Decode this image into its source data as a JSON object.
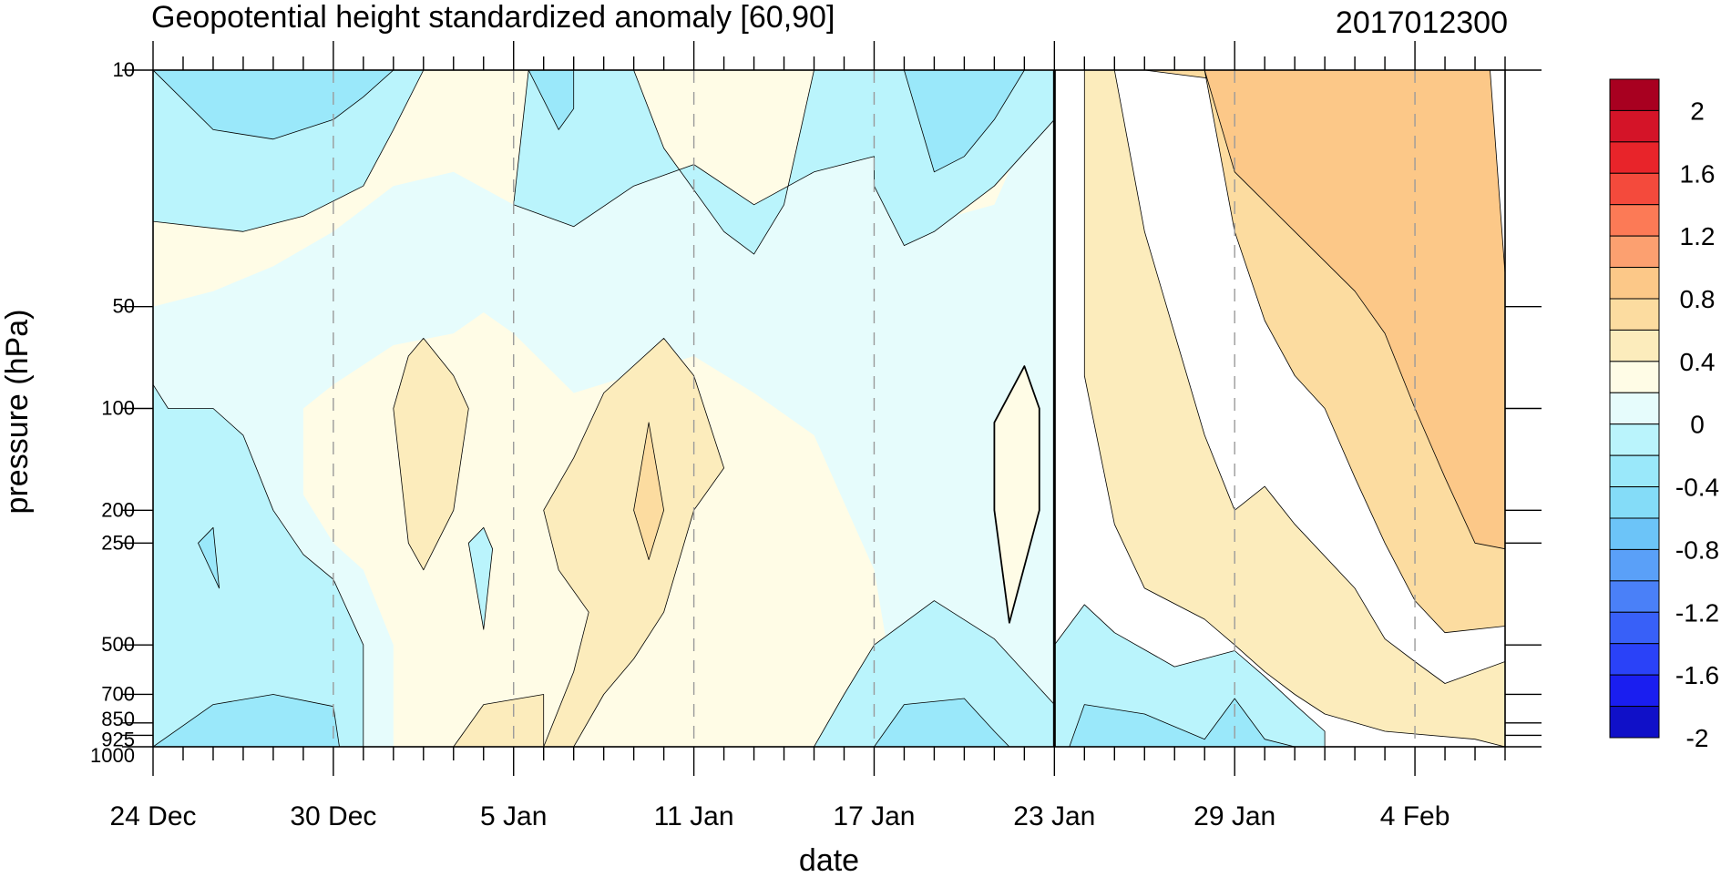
{
  "chart_data": {
    "type": "heatmap",
    "subtype": "filled-contour",
    "title": "Geopotential height standardized anomaly [60,90]",
    "timestamp": "2017012300",
    "xlabel": "date",
    "ylabel": "pressure (hPa)",
    "x_axis": {
      "unit": "days since 24 Dec",
      "range": [
        0,
        45
      ],
      "ticks": [
        {
          "value": 0,
          "label": "24 Dec"
        },
        {
          "value": 6,
          "label": "30 Dec"
        },
        {
          "value": 12,
          "label": "5 Jan"
        },
        {
          "value": 18,
          "label": "11 Jan"
        },
        {
          "value": 24,
          "label": "17 Jan"
        },
        {
          "value": 30,
          "label": "23 Jan"
        },
        {
          "value": 36,
          "label": "29 Jan"
        },
        {
          "value": 42,
          "label": "4 Feb"
        }
      ],
      "forecast_start": 30
    },
    "y_axis": {
      "scale": "log",
      "inverted": true,
      "range": [
        1000,
        10
      ],
      "ticks": [
        {
          "value": 10,
          "label": "10"
        },
        {
          "value": 50,
          "label": "50"
        },
        {
          "value": 100,
          "label": "100"
        },
        {
          "value": 200,
          "label": "200"
        },
        {
          "value": 250,
          "label": "250"
        },
        {
          "value": 500,
          "label": "500"
        },
        {
          "value": 700,
          "label": "700"
        },
        {
          "value": 850,
          "label": "850"
        },
        {
          "value": 925,
          "label": "925"
        },
        {
          "value": 1000,
          "label": "1000"
        }
      ]
    },
    "colorbar": {
      "levels": [
        -2,
        -1.8,
        -1.6,
        -1.4,
        -1.2,
        -1.0,
        -0.8,
        -0.6,
        -0.4,
        -0.2,
        0,
        0.2,
        0.4,
        0.6,
        0.8,
        1.0,
        1.2,
        1.4,
        1.6,
        1.8,
        2
      ],
      "labels": [
        "2",
        "1.6",
        "1.2",
        "0.8",
        "0.4",
        "0",
        "-0.4",
        "-0.8",
        "-1.2",
        "-1.6",
        "-2"
      ],
      "colors": [
        "#1010c8",
        "#1a1ef0",
        "#2a42f8",
        "#3860f8",
        "#4a80f8",
        "#5aa0f8",
        "#6cc4f8",
        "#84dcf8",
        "#9ae8fa",
        "#baf4fc",
        "#e6fcfc",
        "#fffce6",
        "#fcecbc",
        "#fcdca0",
        "#fcc888",
        "#fca070",
        "#fc7a56",
        "#f44a3c",
        "#e8242a",
        "#d41428",
        "#a80020"
      ]
    },
    "regions": [
      {
        "level": "0 to 0.2",
        "color": "#fffce6",
        "points": [
          [
            0,
            50
          ],
          [
            0,
            10
          ],
          [
            30,
            10
          ],
          [
            30,
            1000
          ],
          [
            0,
            1000
          ]
        ]
      },
      {
        "level": "-0.2 to 0",
        "color": "#e6fcfc",
        "points": [
          [
            0,
            50
          ],
          [
            2,
            45
          ],
          [
            4,
            38
          ],
          [
            6,
            30
          ],
          [
            8,
            22
          ],
          [
            10,
            20
          ],
          [
            12,
            25
          ],
          [
            14,
            29
          ],
          [
            16,
            22
          ],
          [
            18,
            19
          ],
          [
            20,
            25
          ],
          [
            22,
            20
          ],
          [
            24,
            18
          ],
          [
            26,
            28
          ],
          [
            28,
            25
          ],
          [
            30,
            10
          ],
          [
            30,
            1000
          ],
          [
            25,
            1000
          ],
          [
            24,
            300
          ],
          [
            22,
            120
          ],
          [
            20,
            90
          ],
          [
            18,
            70
          ],
          [
            14,
            90
          ],
          [
            12,
            60
          ],
          [
            11,
            52
          ],
          [
            10,
            60
          ],
          [
            8,
            65
          ],
          [
            6,
            85
          ],
          [
            5,
            100
          ],
          [
            5,
            180
          ],
          [
            6,
            250
          ],
          [
            7,
            300
          ],
          [
            8,
            500
          ],
          [
            8,
            1000
          ],
          [
            0,
            1000
          ]
        ]
      },
      {
        "level": "-0.4 to -0.2",
        "color": "#baf4fc",
        "points": [
          [
            0,
            10
          ],
          [
            9,
            10
          ],
          [
            8,
            15
          ],
          [
            7,
            22
          ],
          [
            5,
            27
          ],
          [
            3,
            30
          ],
          [
            0,
            28
          ]
        ]
      },
      {
        "level": "-0.4 to -0.2",
        "color": "#baf4fc",
        "points": [
          [
            12.5,
            10
          ],
          [
            16,
            10
          ],
          [
            17,
            17
          ],
          [
            19,
            30
          ],
          [
            20,
            35
          ],
          [
            21,
            25
          ],
          [
            22,
            10
          ],
          [
            30,
            10
          ],
          [
            30,
            14
          ],
          [
            28,
            22
          ],
          [
            26,
            30
          ],
          [
            25,
            33
          ],
          [
            24,
            22
          ],
          [
            24,
            18
          ],
          [
            22,
            20
          ],
          [
            20,
            25
          ],
          [
            18,
            19
          ],
          [
            16,
            22
          ],
          [
            14,
            29
          ],
          [
            12,
            25
          ]
        ]
      },
      {
        "level": "-0.4 to -0.2",
        "color": "#baf4fc",
        "points": [
          [
            0,
            85
          ],
          [
            0.5,
            100
          ],
          [
            2,
            100
          ],
          [
            3,
            120
          ],
          [
            4,
            200
          ],
          [
            5,
            270
          ],
          [
            6,
            320
          ],
          [
            7,
            500
          ],
          [
            7,
            1000
          ],
          [
            0,
            1000
          ]
        ]
      },
      {
        "level": "-0.4 to -0.2",
        "color": "#baf4fc",
        "points": [
          [
            22,
            1000
          ],
          [
            23,
            700
          ],
          [
            24,
            500
          ],
          [
            26,
            370
          ],
          [
            28,
            480
          ],
          [
            30,
            750
          ],
          [
            31,
            1000
          ]
        ]
      },
      {
        "level": "-0.4 to -0.2",
        "color": "#baf4fc",
        "points": [
          [
            30,
            1000
          ],
          [
            30,
            500
          ],
          [
            31,
            380
          ],
          [
            32,
            460
          ],
          [
            34,
            580
          ],
          [
            36,
            520
          ],
          [
            37,
            620
          ],
          [
            38,
            750
          ],
          [
            39,
            900
          ],
          [
            39,
            1000
          ]
        ]
      },
      {
        "level": "-0.6 to -0.4",
        "color": "#9ae8fa",
        "points": [
          [
            0,
            10
          ],
          [
            2,
            15
          ],
          [
            4,
            16
          ],
          [
            6,
            14
          ],
          [
            7,
            12
          ],
          [
            8,
            10
          ]
        ]
      },
      {
        "level": "-0.6 to -0.4",
        "color": "#9ae8fa",
        "points": [
          [
            12.5,
            10
          ],
          [
            14,
            10
          ],
          [
            14,
            13
          ],
          [
            13.5,
            15
          ]
        ]
      },
      {
        "level": "-0.6 to -0.4",
        "color": "#9ae8fa",
        "points": [
          [
            25,
            10
          ],
          [
            29,
            10
          ],
          [
            28,
            14
          ],
          [
            27,
            18
          ],
          [
            26,
            20
          ]
        ]
      },
      {
        "level": "-0.6 to -0.4",
        "color": "#9ae8fa",
        "points": [
          [
            0,
            1000
          ],
          [
            2,
            750
          ],
          [
            4,
            700
          ],
          [
            6,
            760
          ],
          [
            6.2,
            1000
          ]
        ]
      },
      {
        "level": "-0.6 to -0.4",
        "color": "#9ae8fa",
        "points": [
          [
            24,
            1000
          ],
          [
            25,
            750
          ],
          [
            27,
            720
          ],
          [
            28,
            900
          ],
          [
            28.5,
            1000
          ]
        ]
      },
      {
        "level": "-0.6 to -0.4",
        "color": "#9ae8fa",
        "points": [
          [
            30.5,
            1000
          ],
          [
            31,
            750
          ],
          [
            33,
            800
          ],
          [
            35,
            950
          ],
          [
            36,
            720
          ],
          [
            37,
            950
          ],
          [
            38,
            1000
          ]
        ]
      },
      {
        "level": "0.2 to 0.4",
        "color": "#fcecbc",
        "points": [
          [
            8,
            100
          ],
          [
            8.5,
            70
          ],
          [
            9,
            62
          ],
          [
            10,
            80
          ],
          [
            10.5,
            100
          ],
          [
            10,
            200
          ],
          [
            9,
            300
          ],
          [
            8.5,
            250
          ]
        ]
      },
      {
        "level": "0.2 to 0.4",
        "color": "#fcecbc",
        "points": [
          [
            13,
            1000
          ],
          [
            14,
            600
          ],
          [
            14.5,
            400
          ],
          [
            13.5,
            300
          ],
          [
            13,
            200
          ],
          [
            14,
            140
          ],
          [
            15,
            90
          ],
          [
            17,
            62
          ],
          [
            18,
            80
          ],
          [
            19,
            150
          ],
          [
            18,
            200
          ],
          [
            17,
            400
          ],
          [
            16,
            550
          ],
          [
            15,
            700
          ],
          [
            14,
            1000
          ]
        ]
      },
      {
        "level": "0.2 to 0.4",
        "color": "#fcecbc",
        "points": [
          [
            10,
            1000
          ],
          [
            11,
            750
          ],
          [
            13,
            700
          ],
          [
            13,
            1000
          ]
        ]
      },
      {
        "level": "0.4 to 0.6",
        "color": "#fcdca0",
        "points": [
          [
            16,
            200
          ],
          [
            16.5,
            110
          ],
          [
            17,
            200
          ],
          [
            16.5,
            280
          ]
        ]
      },
      {
        "level": "0 to 0.2",
        "color": "#fffce6",
        "points": [
          [
            28,
            200
          ],
          [
            28,
            110
          ],
          [
            29,
            75
          ],
          [
            29.5,
            100
          ],
          [
            29.5,
            200
          ],
          [
            28.5,
            430
          ]
        ]
      },
      {
        "level": "-0.4 to -0.2",
        "color": "#baf4fc",
        "points": [
          [
            10.5,
            250
          ],
          [
            11,
            225
          ],
          [
            11.3,
            260
          ],
          [
            11,
            450
          ]
        ]
      },
      {
        "level": "-0.6 to -0.4",
        "color": "#9ae8fa",
        "points": [
          [
            1.5,
            250
          ],
          [
            2,
            225
          ],
          [
            2.2,
            340
          ]
        ]
      },
      {
        "level": "0.2 to 0.4",
        "color": "#fcecbc",
        "points": [
          [
            31,
            10
          ],
          [
            32,
            10
          ],
          [
            33,
            30
          ],
          [
            34,
            60
          ],
          [
            35,
            120
          ],
          [
            36,
            200
          ],
          [
            37,
            170
          ],
          [
            38,
            220
          ],
          [
            40,
            340
          ],
          [
            41,
            480
          ],
          [
            42,
            560
          ],
          [
            43,
            650
          ],
          [
            45,
            560
          ],
          [
            45,
            1000
          ],
          [
            44,
            950
          ],
          [
            41,
            900
          ],
          [
            39,
            800
          ],
          [
            38,
            700
          ],
          [
            37,
            600
          ],
          [
            36,
            500
          ],
          [
            35,
            420
          ],
          [
            33,
            340
          ],
          [
            32,
            220
          ],
          [
            31,
            80
          ]
        ]
      },
      {
        "level": "0.4 to 0.6",
        "color": "#fcdca0",
        "points": [
          [
            33,
            10
          ],
          [
            35,
            10
          ],
          [
            36,
            30
          ],
          [
            37,
            55
          ],
          [
            38,
            80
          ],
          [
            39,
            100
          ],
          [
            40,
            160
          ],
          [
            41,
            250
          ],
          [
            42,
            370
          ],
          [
            43,
            460
          ],
          [
            45,
            440
          ],
          [
            45,
            90
          ],
          [
            44,
            50
          ],
          [
            43,
            25
          ],
          [
            42,
            18
          ],
          [
            40,
            12
          ]
        ]
      },
      {
        "level": "0.6 to 0.8",
        "color": "#fcc888",
        "points": [
          [
            35,
            10
          ],
          [
            44.5,
            10
          ],
          [
            45,
            40
          ],
          [
            45,
            260
          ],
          [
            44,
            250
          ],
          [
            43,
            160
          ],
          [
            42,
            100
          ],
          [
            41,
            60
          ],
          [
            40,
            45
          ],
          [
            38,
            30
          ],
          [
            36,
            20
          ]
        ]
      }
    ]
  }
}
